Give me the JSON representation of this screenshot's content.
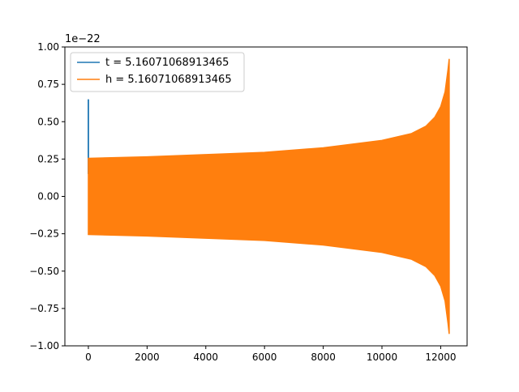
{
  "chart_data": {
    "type": "line",
    "title": "",
    "xlabel": "",
    "ylabel": "",
    "y_offset_label": "1e−22",
    "xlim": [
      -800,
      12900
    ],
    "ylim": [
      -1.0,
      1.0
    ],
    "x_ticks": [
      0,
      2000,
      4000,
      6000,
      8000,
      10000,
      12000
    ],
    "x_tick_labels": [
      "0",
      "2000",
      "4000",
      "6000",
      "8000",
      "10000",
      "12000"
    ],
    "y_ticks": [
      -1.0,
      -0.75,
      -0.5,
      -0.25,
      0.0,
      0.25,
      0.5,
      0.75,
      1.0
    ],
    "y_tick_labels": [
      "−1.00",
      "−0.75",
      "−0.50",
      "−0.25",
      "0.00",
      "0.25",
      "0.50",
      "0.75",
      "1.00"
    ],
    "grid": false,
    "legend_position": "top-left",
    "series": [
      {
        "name": "t = 5.16071068913465",
        "color": "#1f77b4",
        "x": [
          0,
          0,
          0,
          0
        ],
        "y": [
          0.15,
          0.65,
          0.15,
          0.25
        ]
      },
      {
        "name": "h = 5.16071068913465",
        "color": "#ff7f0e",
        "envelope_x": [
          0,
          2000,
          4000,
          6000,
          8000,
          10000,
          11000,
          11500,
          11800,
          12000,
          12150,
          12250,
          12290
        ],
        "envelope_upper": [
          0.255,
          0.265,
          0.28,
          0.295,
          0.325,
          0.375,
          0.42,
          0.47,
          0.53,
          0.6,
          0.7,
          0.85,
          0.92
        ],
        "envelope_lower": [
          -0.255,
          -0.265,
          -0.28,
          -0.295,
          -0.325,
          -0.375,
          -0.42,
          -0.47,
          -0.53,
          -0.6,
          -0.7,
          -0.85,
          -0.92
        ]
      }
    ]
  }
}
